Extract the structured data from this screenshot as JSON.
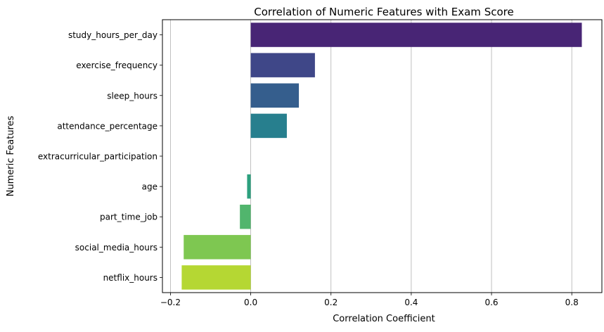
{
  "chart_data": {
    "type": "bar",
    "orientation": "horizontal",
    "title": "Correlation of Numeric Features with Exam Score",
    "xlabel": "Correlation Coefficient",
    "ylabel": "Numeric Features",
    "xlim": [
      -0.22,
      0.875
    ],
    "xticks": [
      -0.2,
      0.0,
      0.2,
      0.4,
      0.6,
      0.8
    ],
    "xtick_labels": [
      "−0.2",
      "0.0",
      "0.2",
      "0.4",
      "0.6",
      "0.8"
    ],
    "grid": "vertical",
    "categories": [
      "study_hours_per_day",
      "exercise_frequency",
      "sleep_hours",
      "attendance_percentage",
      "extracurricular_participation",
      "age",
      "part_time_job",
      "social_media_hours",
      "netflix_hours"
    ],
    "values": [
      0.825,
      0.16,
      0.12,
      0.09,
      0.0,
      -0.009,
      -0.027,
      -0.167,
      -0.172
    ],
    "colors": [
      "#482575",
      "#3f4788",
      "#355e8d",
      "#277f8e",
      "#21918c",
      "#2ca07e",
      "#51b56d",
      "#7ec751",
      "#b5d733"
    ]
  }
}
